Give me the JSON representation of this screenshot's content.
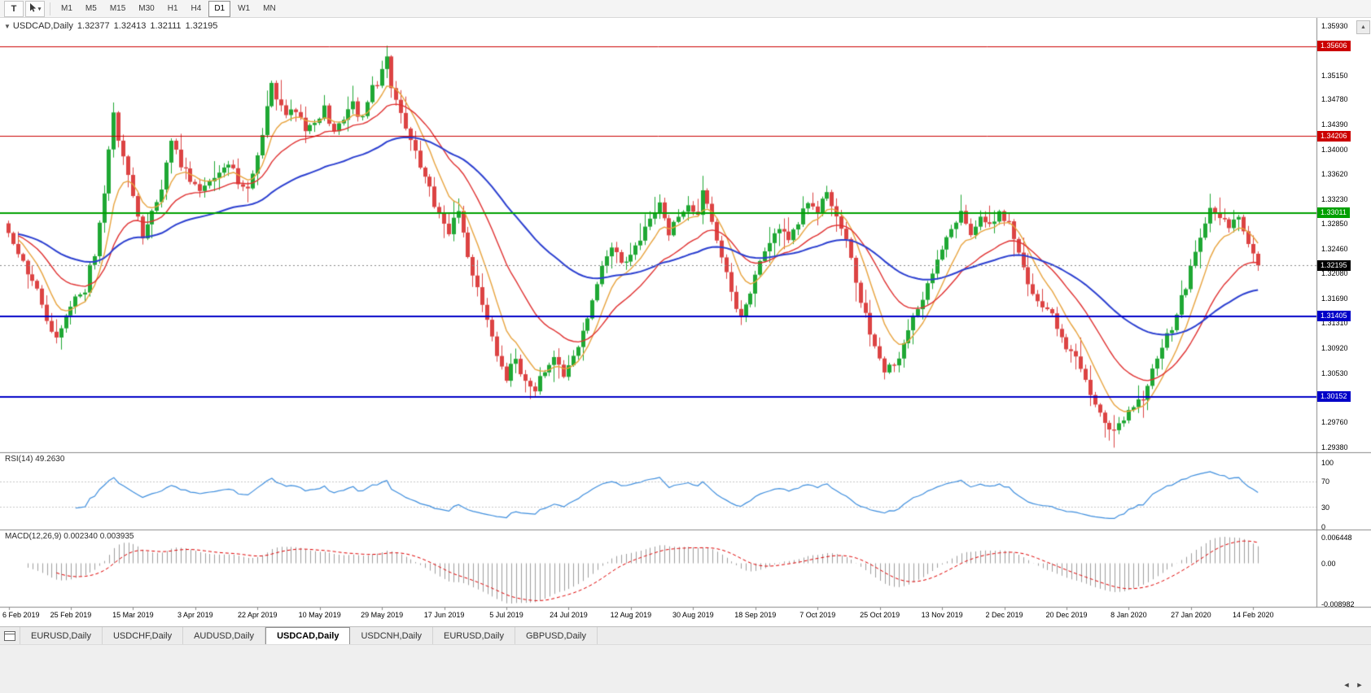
{
  "toolbar": {
    "t_button_label": "T",
    "cursor_caret": "▾",
    "timeframes": [
      "M1",
      "M5",
      "M15",
      "M30",
      "H1",
      "H4",
      "D1",
      "W1",
      "MN"
    ],
    "active_timeframe": "D1"
  },
  "chart_header": {
    "collapse_icon": "▼",
    "title": "USDCAD,Daily",
    "open": "1.32377",
    "high": "1.32413",
    "low": "1.32111",
    "close": "1.32195"
  },
  "nav": {
    "scroll_up": "▲",
    "tab_scroll_left": "◄",
    "tab_scroll_right": "►"
  },
  "tabs": {
    "items": [
      "EURUSD,Daily",
      "USDCHF,Daily",
      "AUDUSD,Daily",
      "USDCAD,Daily",
      "USDCNH,Daily",
      "EURUSD,Daily",
      "GBPUSD,Daily"
    ],
    "active_index": 3
  },
  "chart_data": {
    "type": "candlestick",
    "symbol": "USDCAD",
    "timeframe": "Daily",
    "current_ohlc": {
      "open": 1.32377,
      "high": 1.32413,
      "low": 1.32111,
      "close": 1.32195
    },
    "price_range": [
      1.2938,
      1.3593
    ],
    "price_axis_labels": [
      "1.35930",
      "1.35150",
      "1.34780",
      "1.34390",
      "1.34000",
      "1.33620",
      "1.33230",
      "1.32850",
      "1.32460",
      "1.32080",
      "1.31690",
      "1.31310",
      "1.30920",
      "1.30530",
      "1.29760",
      "1.29380"
    ],
    "x_tick_labels": [
      "6 Feb 2019",
      "25 Feb 2019",
      "15 Mar 2019",
      "3 Apr 2019",
      "22 Apr 2019",
      "10 May 2019",
      "29 May 2019",
      "17 Jun 2019",
      "5 Jul 2019",
      "24 Jul 2019",
      "12 Aug 2019",
      "30 Aug 2019",
      "18 Sep 2019",
      "7 Oct 2019",
      "25 Oct 2019",
      "13 Nov 2019",
      "2 Dec 2019",
      "20 Dec 2019",
      "8 Jan 2020",
      "27 Jan 2020",
      "14 Feb 2020"
    ],
    "candle_count": 262,
    "ticks_every_candles": 13,
    "close_path_anchors": [
      [
        0,
        1.327
      ],
      [
        2,
        1.3235
      ],
      [
        4,
        1.321
      ],
      [
        6,
        1.318
      ],
      [
        8,
        1.3135
      ],
      [
        10,
        1.311
      ],
      [
        12,
        1.314
      ],
      [
        14,
        1.3165
      ],
      [
        16,
        1.3185
      ],
      [
        18,
        1.324
      ],
      [
        20,
        1.333
      ],
      [
        21,
        1.34
      ],
      [
        22,
        1.345
      ],
      [
        23,
        1.342
      ],
      [
        24,
        1.339
      ],
      [
        26,
        1.333
      ],
      [
        28,
        1.3265
      ],
      [
        30,
        1.33
      ],
      [
        32,
        1.334
      ],
      [
        34,
        1.3415
      ],
      [
        36,
        1.338
      ],
      [
        38,
        1.3355
      ],
      [
        40,
        1.333
      ],
      [
        42,
        1.335
      ],
      [
        44,
        1.3365
      ],
      [
        46,
        1.3385
      ],
      [
        48,
        1.335
      ],
      [
        50,
        1.333
      ],
      [
        52,
        1.339
      ],
      [
        54,
        1.346
      ],
      [
        55,
        1.3505
      ],
      [
        56,
        1.348
      ],
      [
        58,
        1.345
      ],
      [
        60,
        1.3465
      ],
      [
        62,
        1.343
      ],
      [
        64,
        1.3445
      ],
      [
        66,
        1.346
      ],
      [
        68,
        1.3425
      ],
      [
        70,
        1.345
      ],
      [
        72,
        1.3475
      ],
      [
        74,
        1.3445
      ],
      [
        76,
        1.349
      ],
      [
        78,
        1.3525
      ],
      [
        79,
        1.3545
      ],
      [
        80,
        1.3505
      ],
      [
        82,
        1.3455
      ],
      [
        84,
        1.3415
      ],
      [
        86,
        1.3375
      ],
      [
        88,
        1.334
      ],
      [
        90,
        1.33
      ],
      [
        92,
        1.327
      ],
      [
        94,
        1.3305
      ],
      [
        96,
        1.324
      ],
      [
        98,
        1.318
      ],
      [
        100,
        1.313
      ],
      [
        102,
        1.3085
      ],
      [
        104,
        1.3045
      ],
      [
        106,
        1.307
      ],
      [
        108,
        1.304
      ],
      [
        110,
        1.302
      ],
      [
        112,
        1.3055
      ],
      [
        114,
        1.3085
      ],
      [
        116,
        1.3045
      ],
      [
        118,
        1.308
      ],
      [
        120,
        1.312
      ],
      [
        122,
        1.3165
      ],
      [
        124,
        1.3215
      ],
      [
        126,
        1.325
      ],
      [
        128,
        1.3225
      ],
      [
        130,
        1.324
      ],
      [
        132,
        1.3265
      ],
      [
        134,
        1.329
      ],
      [
        136,
        1.331
      ],
      [
        138,
        1.3275
      ],
      [
        140,
        1.3295
      ],
      [
        142,
        1.331
      ],
      [
        144,
        1.329
      ],
      [
        145,
        1.334
      ],
      [
        147,
        1.329
      ],
      [
        149,
        1.323
      ],
      [
        151,
        1.318
      ],
      [
        153,
        1.314
      ],
      [
        155,
        1.318
      ],
      [
        157,
        1.322
      ],
      [
        159,
        1.3255
      ],
      [
        161,
        1.328
      ],
      [
        163,
        1.3262
      ],
      [
        165,
        1.329
      ],
      [
        167,
        1.332
      ],
      [
        169,
        1.331
      ],
      [
        171,
        1.333
      ],
      [
        173,
        1.33
      ],
      [
        175,
        1.3255
      ],
      [
        177,
        1.3195
      ],
      [
        179,
        1.3145
      ],
      [
        181,
        1.3095
      ],
      [
        183,
        1.306
      ],
      [
        185,
        1.307
      ],
      [
        187,
        1.31
      ],
      [
        189,
        1.314
      ],
      [
        191,
        1.3175
      ],
      [
        193,
        1.3205
      ],
      [
        195,
        1.3245
      ],
      [
        197,
        1.3275
      ],
      [
        199,
        1.33
      ],
      [
        201,
        1.327
      ],
      [
        203,
        1.3295
      ],
      [
        205,
        1.328
      ],
      [
        207,
        1.3305
      ],
      [
        209,
        1.328
      ],
      [
        211,
        1.324
      ],
      [
        213,
        1.32
      ],
      [
        215,
        1.3165
      ],
      [
        217,
        1.315
      ],
      [
        219,
        1.3125
      ],
      [
        221,
        1.3095
      ],
      [
        223,
        1.308
      ],
      [
        225,
        1.305
      ],
      [
        227,
        1.3005
      ],
      [
        229,
        1.297
      ],
      [
        231,
        1.296
      ],
      [
        233,
        1.2985
      ],
      [
        235,
        1.3
      ],
      [
        237,
        1.302
      ],
      [
        239,
        1.3055
      ],
      [
        241,
        1.309
      ],
      [
        243,
        1.3125
      ],
      [
        245,
        1.3165
      ],
      [
        247,
        1.3215
      ],
      [
        249,
        1.3265
      ],
      [
        251,
        1.3305
      ],
      [
        253,
        1.3295
      ],
      [
        255,
        1.3285
      ],
      [
        257,
        1.3293
      ],
      [
        259,
        1.3255
      ],
      [
        260,
        1.324
      ],
      [
        261,
        1.322
      ]
    ],
    "candle_overrides": {
      "79": {
        "h": 1.3561
      },
      "110": {
        "l": 1.3016
      },
      "229": {
        "l": 1.2952
      },
      "251": {
        "h": 1.3331
      },
      "261": {
        "o": 1.32377,
        "h": 1.32413,
        "l": 1.32111,
        "c": 1.32195
      }
    },
    "horizontal_lines": [
      {
        "price": 1.35606,
        "label": "1.35606",
        "color": "#CC0000",
        "width": 1
      },
      {
        "price": 1.34206,
        "label": "1.34206",
        "color": "#CC0000",
        "width": 1
      },
      {
        "price": 1.33011,
        "label": "1.33011",
        "color": "#00A000",
        "width": 2
      },
      {
        "price": 1.31405,
        "label": "1.31405",
        "color": "#0000C8",
        "width": 2
      },
      {
        "price": 1.30152,
        "label": "1.30152",
        "color": "#0000C8",
        "width": 2
      }
    ],
    "current_price_line": {
      "value": 1.32195,
      "label": "1.32195",
      "tag_color": "#000000",
      "line_color": "#888888"
    },
    "moving_averages": [
      {
        "period": 8,
        "color": "#E8A33D"
      },
      {
        "period": 21,
        "color": "#E03030"
      },
      {
        "period": 55,
        "color": "#2B3FD0"
      }
    ],
    "candle_colors": {
      "up": "#1FA834",
      "down": "#DC4343",
      "background": "#FFFFFF"
    },
    "indicators": {
      "rsi": {
        "label": "RSI(14) 49.2630",
        "period": 14,
        "current": "49.2630",
        "levels_labels": [
          "100",
          "70",
          "30",
          "0"
        ],
        "levels": [
          100,
          70,
          30,
          0
        ],
        "dashed_levels": [
          70,
          30
        ],
        "color": "#3E8EDE"
      },
      "macd": {
        "label": "MACD(12,26,9) 0.002340 0.003935",
        "fast": 12,
        "slow": 26,
        "signal": 9,
        "values": [
          "0.002340",
          "0.003935"
        ],
        "axis_labels": [
          "0.006448",
          "0.00",
          "-0.008982"
        ],
        "hist_color": "#9E9E9E",
        "signal_color": "#E00000"
      }
    }
  }
}
